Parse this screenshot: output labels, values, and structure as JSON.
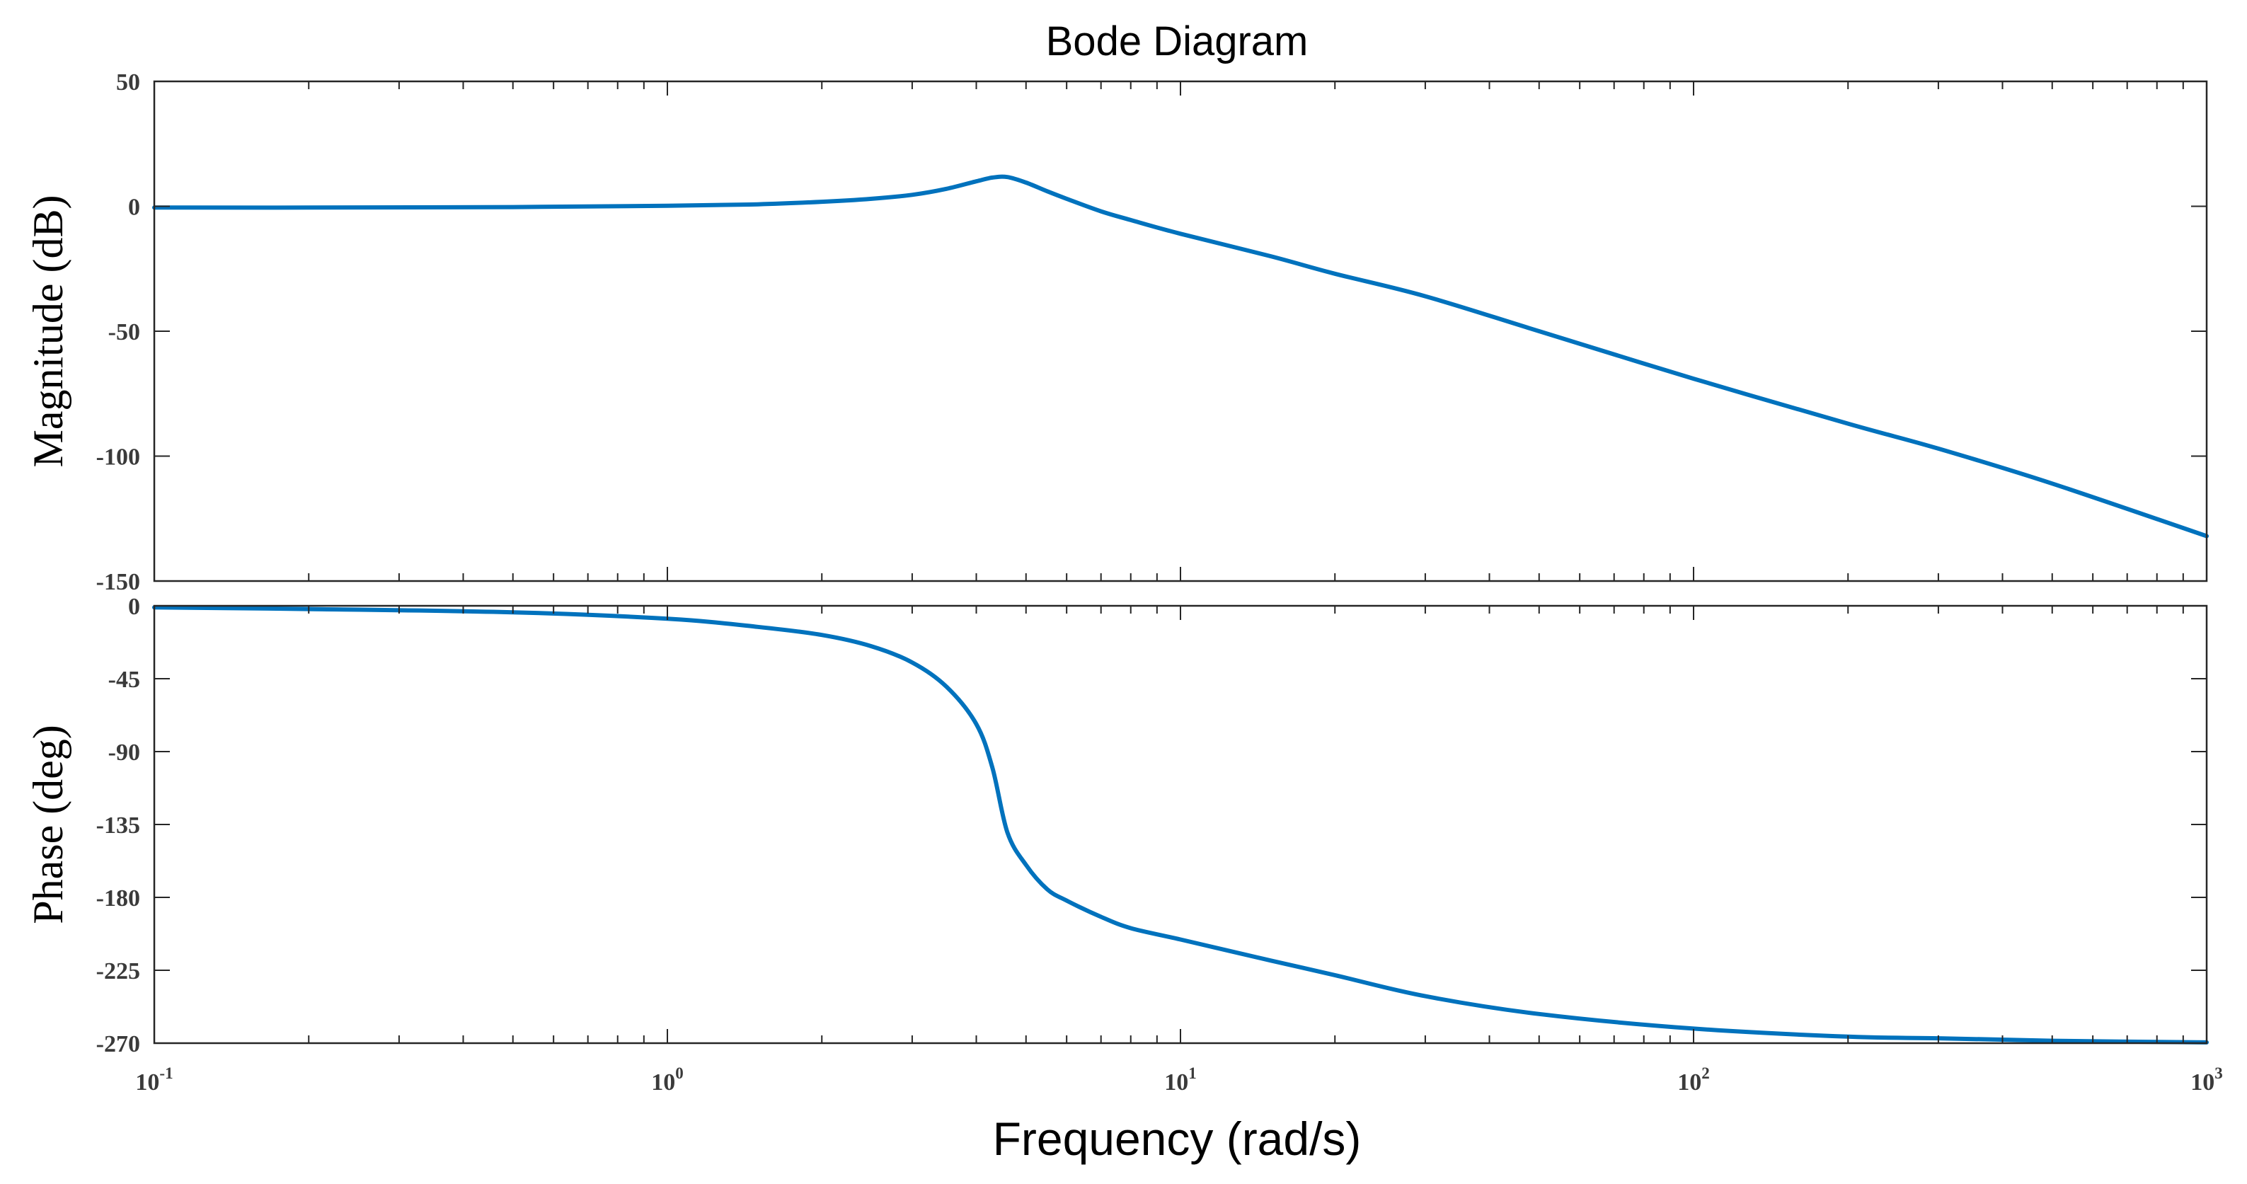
{
  "chart_data": {
    "type": "line",
    "title": "Bode Diagram",
    "xlabel": "Frequency  (rad/s)",
    "xscale": "log",
    "xlim": [
      0.1,
      1000
    ],
    "x_tick_labels": [
      {
        "base": "10",
        "exp": "-1"
      },
      {
        "base": "10",
        "exp": "0"
      },
      {
        "base": "10",
        "exp": "1"
      },
      {
        "base": "10",
        "exp": "2"
      },
      {
        "base": "10",
        "exp": "3"
      }
    ],
    "line_color": "#0072BD",
    "panels": [
      {
        "name": "magnitude",
        "ylabel": "Magnitude (dB)",
        "ylim": [
          -150,
          50
        ],
        "yticks": [
          50,
          0,
          -50,
          -100,
          -150
        ],
        "ytick_labels": [
          "50",
          "0",
          "-50",
          "-100",
          "-150"
        ],
        "series": {
          "name": "Magnitude",
          "x": [
            0.1,
            0.2,
            0.5,
            1,
            1.5,
            2,
            2.5,
            3,
            3.5,
            4,
            4.3,
            4.6,
            5,
            5.5,
            6,
            7,
            8,
            10,
            15,
            20,
            30,
            50,
            100,
            200,
            300,
            500,
            1000
          ],
          "y": [
            -0.5,
            -0.5,
            -0.3,
            0.2,
            0.8,
            1.8,
            3,
            4.6,
            7,
            10,
            11.5,
            11.7,
            9.5,
            6,
            3,
            -2,
            -5.5,
            -11,
            -20,
            -27,
            -36,
            -50,
            -69,
            -87,
            -97,
            -111,
            -132
          ]
        }
      },
      {
        "name": "phase",
        "ylabel": "Phase (deg)",
        "ylim": [
          -270,
          0
        ],
        "yticks": [
          0,
          -45,
          -90,
          -135,
          -180,
          -225,
          -270
        ],
        "ytick_labels": [
          "0",
          "-45",
          "-90",
          "-135",
          "-180",
          "-225",
          "-270"
        ],
        "series": {
          "name": "Phase",
          "x": [
            0.1,
            0.2,
            0.5,
            1,
            1.5,
            2,
            2.5,
            3,
            3.5,
            4,
            4.3,
            4.6,
            5,
            5.5,
            6,
            7,
            8,
            10,
            15,
            20,
            30,
            50,
            100,
            200,
            300,
            500,
            1000
          ],
          "y": [
            -1,
            -2,
            -4,
            -8,
            -13,
            -18,
            -25,
            -35,
            -50,
            -73,
            -100,
            -140,
            -160,
            -175,
            -182,
            -192,
            -199,
            -206,
            -219,
            -228,
            -241,
            -252,
            -261,
            -266,
            -267,
            -268.5,
            -269.5
          ]
        }
      }
    ]
  }
}
